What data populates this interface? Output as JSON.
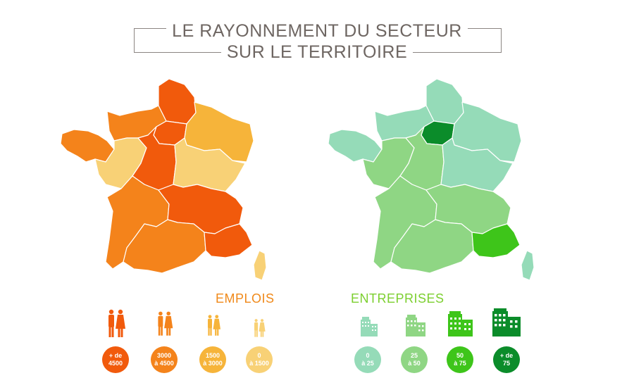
{
  "title": {
    "line1": "LE RAYONNEMENT DU SECTEUR",
    "line2": "SUR LE TERRITOIRE"
  },
  "emplois": {
    "heading": "EMPLOIS",
    "color": "#f0891a",
    "legend": [
      {
        "line1": "+ de",
        "line2": "4500",
        "color": "#f15a0c",
        "icon": "people-icon"
      },
      {
        "line1": "3000",
        "line2": "à 4500",
        "color": "#f4831b",
        "icon": "people-icon"
      },
      {
        "line1": "1500",
        "line2": "à 3000",
        "color": "#f6b43a",
        "icon": "people-icon"
      },
      {
        "line1": "0",
        "line2": "à 1500",
        "color": "#f8d176",
        "icon": "people-icon"
      }
    ]
  },
  "entreprises": {
    "heading": "ENTREPRISES",
    "color": "#7ccf2f",
    "legend": [
      {
        "line1": "0",
        "line2": "à 25",
        "color": "#95dbb8",
        "icon": "building-icon"
      },
      {
        "line1": "25",
        "line2": "à 50",
        "color": "#8fd684",
        "icon": "building-icon"
      },
      {
        "line1": "50",
        "line2": "à 75",
        "color": "#3ec51a",
        "icon": "building-icon"
      },
      {
        "line1": "+ de",
        "line2": "75",
        "color": "#0b8c2a",
        "icon": "building-icon"
      }
    ]
  }
}
